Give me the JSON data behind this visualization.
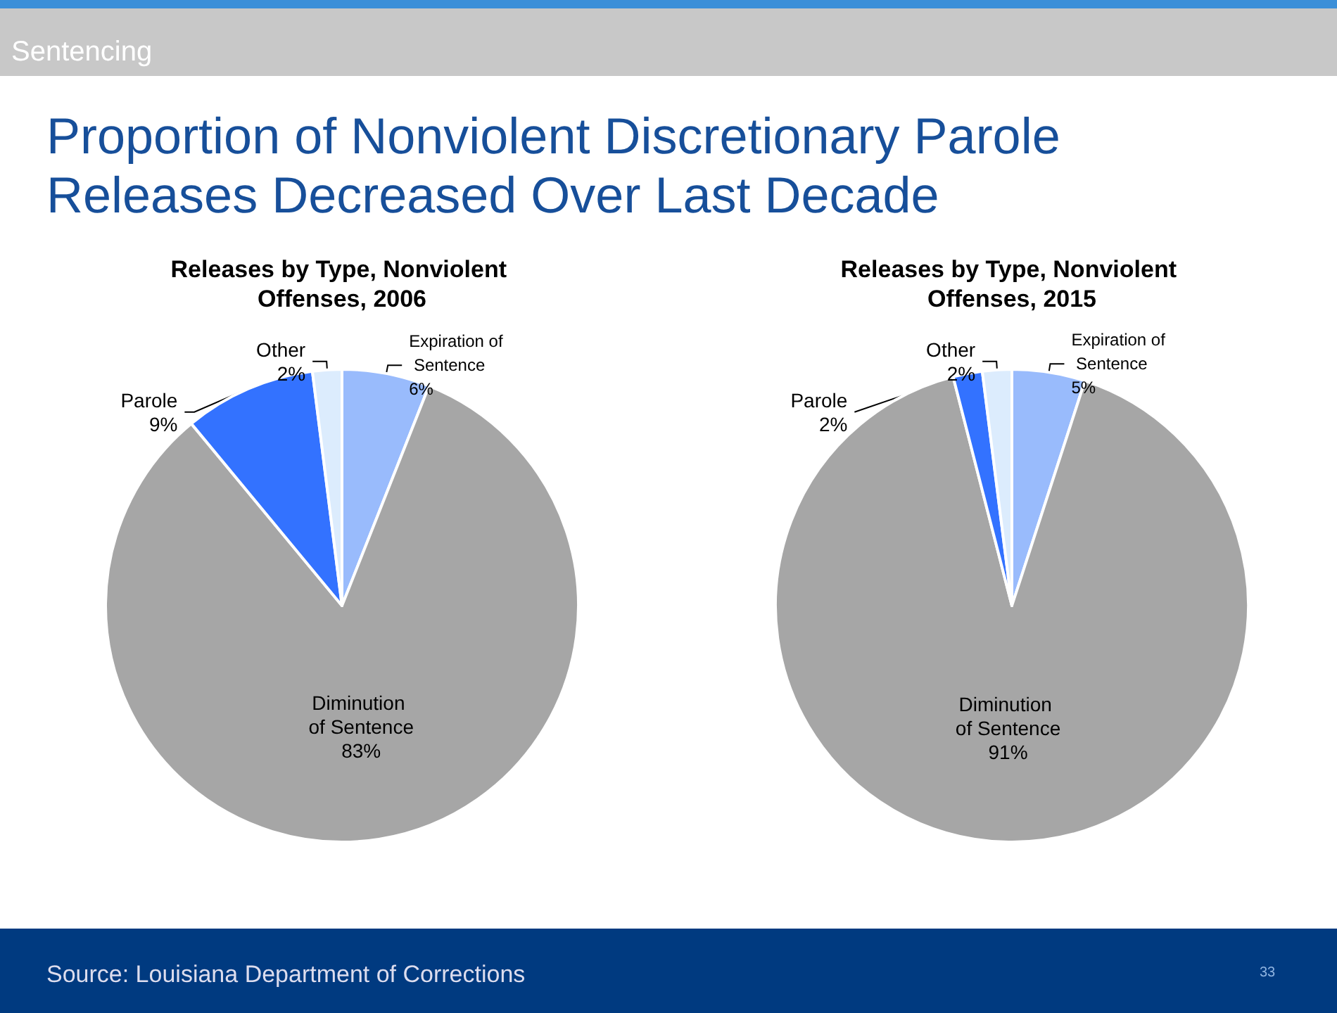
{
  "chart_data": [
    {
      "type": "pie",
      "title": "Releases by Type, Nonviolent Offenses, 2006",
      "annotations": [
        "Sentencing",
        "Proportion of Nonviolent Discretionary Parole Releases Decreased Over Last Decade"
      ],
      "categories": [
        "Expiration of Sentence",
        "Diminution of Sentence",
        "Parole",
        "Other"
      ],
      "values": [
        6,
        83,
        9,
        2
      ],
      "value_labels": [
        "6%",
        "83%",
        "9%",
        "2%"
      ],
      "colors": [
        "#99bbfc",
        "#a6a6a6",
        "#3372ff",
        "#dcecfd"
      ]
    },
    {
      "type": "pie",
      "title": "Releases by Type, Nonviolent Offenses, 2015",
      "annotations": [
        "Source: Louisiana Department of Corrections",
        "33"
      ],
      "categories": [
        "Expiration of Sentence",
        "Diminution of Sentence",
        "Parole",
        "Other"
      ],
      "values": [
        5,
        91,
        2,
        2
      ],
      "value_labels": [
        "5%",
        "91%",
        "2%",
        "2%"
      ],
      "colors": [
        "#99bbfc",
        "#a6a6a6",
        "#3372ff",
        "#dcecfd"
      ]
    }
  ]
}
